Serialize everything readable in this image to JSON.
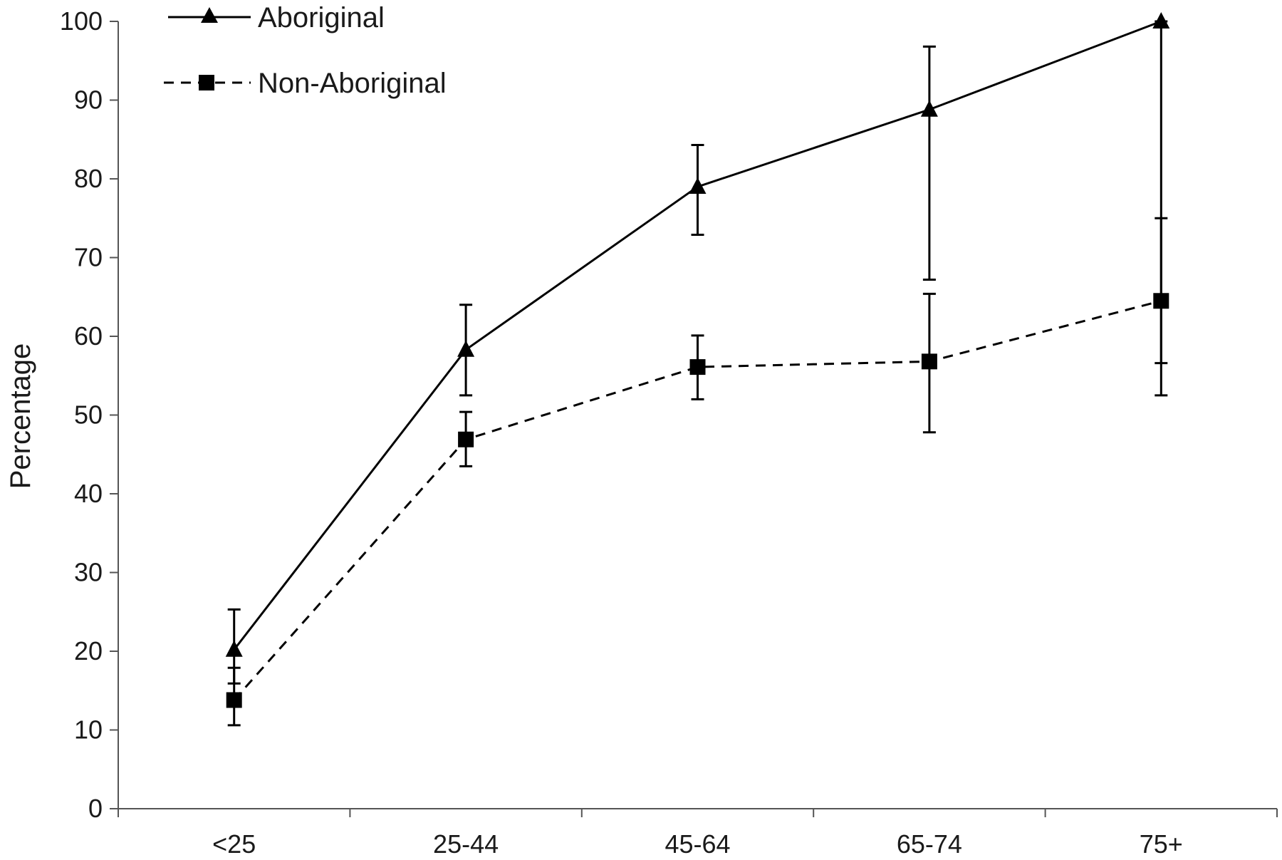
{
  "chart_data": {
    "type": "line",
    "title": "",
    "xlabel": "",
    "ylabel": "Percentage",
    "categories": [
      "<25",
      "25-44",
      "45-64",
      "65-74",
      "75+"
    ],
    "ylim": [
      0,
      100
    ],
    "yticks": [
      0,
      10,
      20,
      30,
      40,
      50,
      60,
      70,
      80,
      90,
      100
    ],
    "grid": false,
    "legend_position": "top-left",
    "series": [
      {
        "name": "Aboriginal",
        "marker": "triangle",
        "line_style": "solid",
        "color": "#000000",
        "values": [
          20.2,
          58.3,
          79.0,
          88.8,
          100
        ],
        "error_low": [
          15.9,
          52.5,
          72.9,
          67.2,
          56.6
        ],
        "error_high": [
          25.3,
          64.0,
          84.3,
          96.8,
          100
        ]
      },
      {
        "name": "Non-Aboriginal",
        "marker": "square",
        "line_style": "dashed",
        "color": "#000000",
        "values": [
          13.8,
          46.9,
          56.1,
          56.8,
          64.5
        ],
        "error_low": [
          10.6,
          43.5,
          52.0,
          47.8,
          52.5
        ],
        "error_high": [
          17.9,
          50.4,
          60.1,
          65.4,
          75.0
        ]
      }
    ]
  }
}
